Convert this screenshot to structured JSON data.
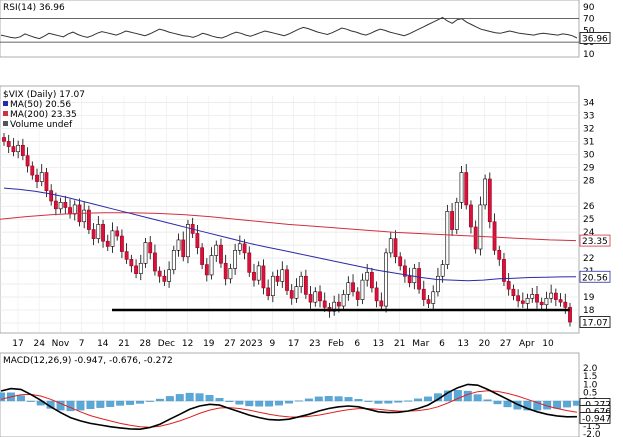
{
  "chart_data": [
    {
      "panel": "rsi",
      "type": "line",
      "label": "RSI(14)",
      "label_value": "36.96",
      "y_ticks": [
        90,
        70,
        50,
        30
      ],
      "y_ticks_right_extra": [
        10
      ],
      "ylim": [
        8,
        95
      ],
      "reference_lines": [
        70,
        30
      ],
      "current_value": 36.96,
      "series": [
        {
          "name": "RSI(14)",
          "values": [
            42,
            40,
            38,
            37,
            39,
            44,
            41,
            38,
            36,
            40,
            45,
            43,
            41,
            39,
            44,
            47,
            43,
            40,
            38,
            41,
            45,
            48,
            46,
            44,
            42,
            45,
            49,
            47,
            45,
            43,
            41,
            44,
            48,
            52,
            50,
            47,
            45,
            43,
            41,
            40,
            38,
            41,
            45,
            43,
            40,
            38,
            37,
            40,
            44,
            47,
            45,
            42,
            40,
            43,
            46,
            49,
            47,
            45,
            43,
            41,
            44,
            48,
            52,
            55,
            53,
            50,
            47,
            45,
            43,
            46,
            50,
            54,
            52,
            49,
            47,
            44,
            42,
            45,
            49,
            52,
            50,
            47,
            45,
            43,
            41,
            44,
            48,
            52,
            56,
            60,
            64,
            68,
            72,
            66,
            62,
            68,
            70,
            64,
            60,
            56,
            52,
            50,
            48,
            46,
            45,
            47,
            49,
            47,
            45,
            44,
            43,
            42,
            44,
            45,
            44,
            43,
            42,
            44,
            43,
            41,
            37
          ]
        }
      ]
    },
    {
      "panel": "price",
      "type": "candlestick",
      "title": "$VIX (Daily)",
      "title_value": "17.07",
      "legend": [
        {
          "name": "MA(50)",
          "value": "20.56",
          "color": "#2a2aa8"
        },
        {
          "name": "MA(200)",
          "value": "23.35",
          "color": "#d03040"
        },
        {
          "name": "Volume undef",
          "value": "",
          "color": "#555555"
        }
      ],
      "y_ticks": [
        34,
        33,
        32,
        31,
        30,
        29,
        28,
        27,
        26,
        25,
        24,
        23,
        22,
        21,
        20,
        19,
        18,
        17
      ],
      "y_tick_labels_shown": [
        34,
        33,
        32,
        31,
        30,
        29,
        28,
        26,
        25,
        24,
        22,
        21,
        19,
        18
      ],
      "ylim": [
        16.3,
        34.5
      ],
      "x_labels": [
        "17",
        "24",
        "Nov",
        "7",
        "14",
        "21",
        "28",
        "Dec",
        "12",
        "19",
        "27",
        "2023",
        "9",
        "17",
        "23",
        "Feb",
        "6",
        "13",
        "21",
        "Mar",
        "6",
        "13",
        "20",
        "27",
        "Apr",
        "10"
      ],
      "price_tags": [
        {
          "value": "23.35",
          "y": 23.35,
          "color": "#d03040"
        },
        {
          "value": "20.56",
          "y": 20.56,
          "color": "#2a2aa8"
        },
        {
          "value": "17.07",
          "y": 17.07,
          "color": "#000000"
        }
      ],
      "support_line": {
        "y": 18.0,
        "label": "18"
      },
      "closes": [
        31.0,
        30.6,
        30.2,
        30.7,
        29.9,
        29.1,
        28.4,
        27.9,
        28.6,
        27.2,
        26.4,
        25.8,
        26.3,
        25.9,
        25.4,
        26.1,
        24.8,
        25.7,
        24.2,
        23.5,
        24.6,
        23.3,
        22.9,
        24.1,
        23.7,
        22.5,
        21.9,
        21.4,
        20.8,
        21.6,
        23.2,
        22.4,
        21.0,
        20.6,
        20.2,
        21.1,
        22.6,
        23.4,
        22.1,
        24.6,
        23.9,
        22.8,
        21.5,
        20.7,
        22.2,
        23.0,
        21.6,
        20.4,
        21.2,
        22.6,
        23.1,
        22.4,
        20.9,
        20.3,
        21.4,
        19.7,
        19.1,
        20.6,
        20.2,
        21.1,
        19.5,
        18.9,
        19.8,
        20.6,
        19.2,
        18.6,
        19.4,
        18.7,
        18.2,
        17.9,
        18.6,
        18.3,
        19.2,
        20.1,
        19.4,
        18.8,
        20.3,
        20.9,
        19.7,
        18.7,
        18.3,
        22.4,
        23.5,
        22.1,
        21.4,
        20.6,
        20.1,
        21.2,
        19.6,
        18.8,
        18.5,
        19.4,
        20.6,
        21.5,
        25.6,
        24.2,
        26.3,
        28.6,
        26.1,
        24.4,
        22.7,
        26.1,
        28.1,
        24.8,
        22.6,
        21.9,
        20.2,
        19.6,
        19.1,
        18.7,
        18.5,
        18.9,
        19.2,
        18.6,
        18.4,
        18.9,
        19.3,
        18.8,
        18.6,
        18.2,
        17.07
      ],
      "series": [
        {
          "name": "MA(50)",
          "values": [
            27.4,
            27.3,
            27.15,
            26.95,
            26.7,
            26.4,
            26.1,
            25.8,
            25.5,
            25.2,
            24.9,
            24.6,
            24.3,
            24.0,
            23.7,
            23.4,
            23.1,
            22.85,
            22.6,
            22.35,
            22.1,
            21.85,
            21.6,
            21.35,
            21.1,
            20.9,
            20.7,
            20.5,
            20.35,
            20.3,
            20.25,
            20.3,
            20.4,
            20.45,
            20.5,
            20.52,
            20.55,
            20.56
          ]
        },
        {
          "name": "MA(200)",
          "values": [
            25.0,
            25.2,
            25.35,
            25.45,
            25.5,
            25.5,
            25.45,
            25.35,
            25.2,
            25.0,
            24.8,
            24.6,
            24.45,
            24.3,
            24.15,
            24.0,
            23.9,
            23.8,
            23.7,
            23.6,
            23.5,
            23.4,
            23.35
          ]
        }
      ]
    },
    {
      "panel": "macd",
      "type": "line",
      "label": "MACD(12,26,9)",
      "label_values": [
        "-0.947",
        "-0.676",
        "-0.272"
      ],
      "y_ticks": [
        2.0,
        1.5,
        1.0,
        0.5,
        0.0,
        -0.5,
        -1.0,
        -1.5,
        -2.0
      ],
      "y_tick_labels": [
        "2.0",
        "1.5",
        "1.0",
        "0.5",
        "0.0",
        "-0.5",
        "-1.0",
        "-1.5",
        "-2.0"
      ],
      "ylim": [
        -2.05,
        2.05
      ],
      "price_tags": [
        {
          "value": "-0.272",
          "y": -0.272
        },
        {
          "value": "-0.676",
          "y": -0.676
        },
        {
          "value": "-0.947",
          "y": -0.947
        }
      ],
      "series": [
        {
          "name": "MACD",
          "values": [
            0.6,
            0.75,
            0.7,
            0.4,
            0.05,
            -0.35,
            -0.7,
            -1.0,
            -1.2,
            -1.35,
            -1.45,
            -1.55,
            -1.62,
            -1.68,
            -1.7,
            -1.6,
            -1.4,
            -1.1,
            -0.8,
            -0.5,
            -0.3,
            -0.2,
            -0.25,
            -0.45,
            -0.65,
            -0.85,
            -1.0,
            -1.12,
            -1.15,
            -1.1,
            -0.95,
            -0.8,
            -0.6,
            -0.45,
            -0.35,
            -0.3,
            -0.35,
            -0.5,
            -0.65,
            -0.7,
            -0.68,
            -0.6,
            -0.45,
            -0.25,
            0.1,
            0.5,
            0.8,
            1.0,
            0.95,
            0.7,
            0.4,
            0.1,
            -0.2,
            -0.45,
            -0.65,
            -0.8,
            -0.9,
            -0.95,
            -0.947
          ]
        },
        {
          "name": "Signal",
          "values": [
            0.1,
            0.25,
            0.38,
            0.4,
            0.3,
            0.1,
            -0.15,
            -0.4,
            -0.65,
            -0.88,
            -1.05,
            -1.2,
            -1.35,
            -1.46,
            -1.55,
            -1.58,
            -1.52,
            -1.38,
            -1.2,
            -0.98,
            -0.75,
            -0.55,
            -0.42,
            -0.4,
            -0.45,
            -0.55,
            -0.68,
            -0.8,
            -0.9,
            -0.96,
            -0.97,
            -0.93,
            -0.85,
            -0.74,
            -0.62,
            -0.52,
            -0.46,
            -0.46,
            -0.5,
            -0.56,
            -0.6,
            -0.61,
            -0.58,
            -0.5,
            -0.35,
            -0.12,
            0.15,
            0.4,
            0.56,
            0.62,
            0.58,
            0.46,
            0.3,
            0.1,
            -0.1,
            -0.3,
            -0.45,
            -0.58,
            -0.676
          ]
        }
      ]
    }
  ]
}
